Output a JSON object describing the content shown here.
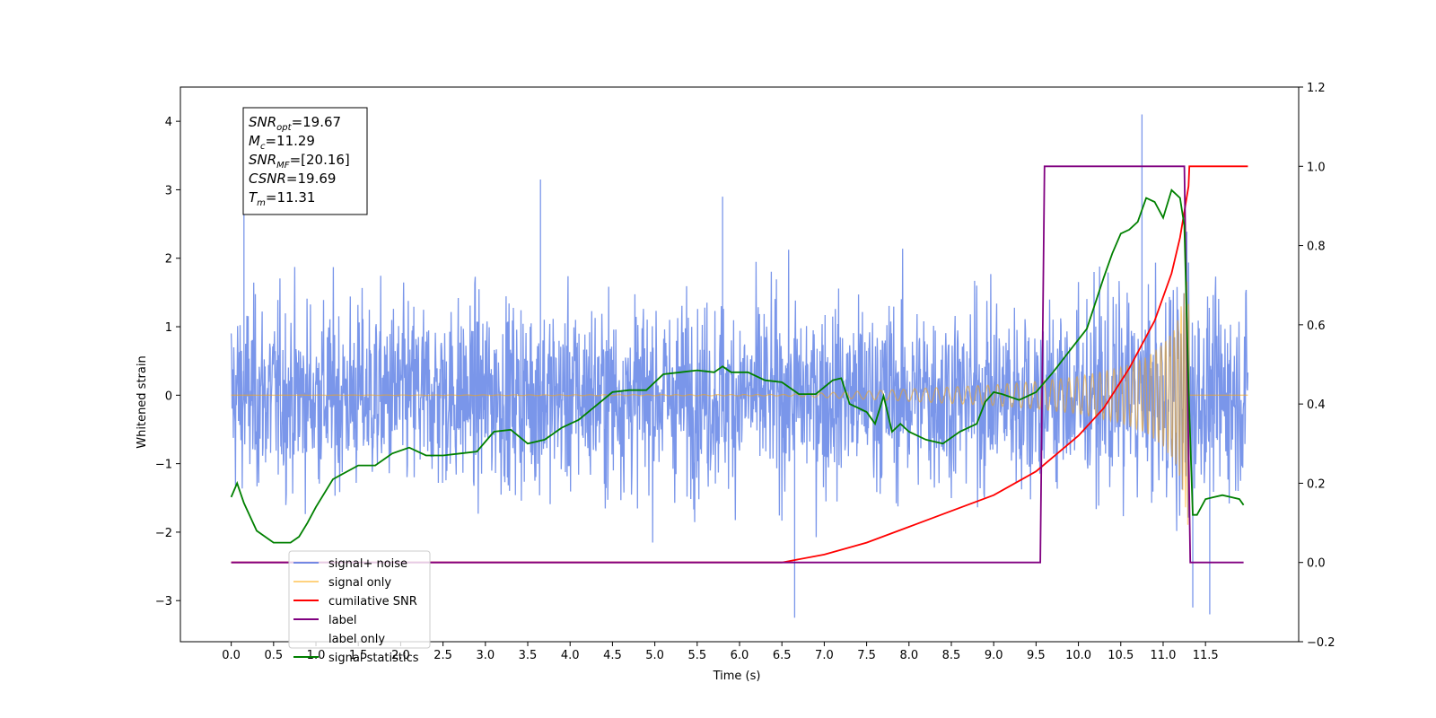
{
  "chart_data": {
    "type": "line",
    "xlabel": "Time (s)",
    "ylabel_left": "Whitened strain",
    "ylabel_right": "",
    "xlim": [
      -0.6,
      12.6
    ],
    "ylim_left": [
      -3.6,
      4.5
    ],
    "ylim_right": [
      -0.2,
      1.2
    ],
    "x_ticks": [
      "0.0",
      "0.5",
      "1.0",
      "1.5",
      "2.0",
      "2.5",
      "3.0",
      "3.5",
      "4.0",
      "4.5",
      "5.0",
      "5.5",
      "6.0",
      "6.5",
      "7.0",
      "7.5",
      "8.0",
      "8.5",
      "9.0",
      "9.5",
      "10.0",
      "10.5",
      "11.0",
      "11.5"
    ],
    "y_ticks_left": [
      "4",
      "3",
      "2",
      "1",
      "0",
      "−1",
      "−2",
      "−3"
    ],
    "y_ticks_right": [
      "1.2",
      "1.0",
      "0.8",
      "0.6",
      "0.4",
      "0.2",
      "0.0",
      "−0.2"
    ],
    "grid": false,
    "legend_position": "lower-left",
    "info_box": [
      {
        "base": "SNR",
        "sub": "opt",
        "value": "=19.67"
      },
      {
        "base": "M",
        "sub": "c",
        "value": "=11.29"
      },
      {
        "base": "SNR",
        "sub": "MF",
        "value": "=[20.16]"
      },
      {
        "base": "CSNR",
        "sub": "",
        "value": "=19.69"
      },
      {
        "base": "T",
        "sub": "m",
        "value": "=11.31"
      }
    ],
    "series": [
      {
        "name": "signal+ noise",
        "axis": "left",
        "color": "#4169e1",
        "description_range": [
          -3.3,
          4.1
        ],
        "x_range": [
          0.0,
          12.0
        ],
        "noise_sigma": 0.85,
        "spikes": [
          {
            "x": 0.15,
            "y": 3.1
          },
          {
            "x": 3.65,
            "y": 3.15
          },
          {
            "x": 6.65,
            "y": -3.25
          },
          {
            "x": 10.75,
            "y": 4.1
          },
          {
            "x": 11.55,
            "y": -3.2
          },
          {
            "x": 11.35,
            "y": -3.1
          },
          {
            "x": 5.8,
            "y": 2.9
          }
        ]
      },
      {
        "name": "signal only",
        "axis": "left",
        "color": "#ffa500",
        "chirp_end": 11.31,
        "envelope": [
          [
            0.0,
            0.0
          ],
          [
            6.5,
            0.01
          ],
          [
            7.5,
            0.06
          ],
          [
            8.5,
            0.12
          ],
          [
            9.0,
            0.15
          ],
          [
            9.5,
            0.2
          ],
          [
            10.0,
            0.27
          ],
          [
            10.5,
            0.4
          ],
          [
            10.8,
            0.55
          ],
          [
            11.0,
            0.75
          ],
          [
            11.15,
            1.0
          ],
          [
            11.25,
            1.5
          ],
          [
            11.3,
            2.0
          ],
          [
            11.31,
            0.0
          ],
          [
            12.0,
            0.0
          ]
        ]
      },
      {
        "name": "cumilative SNR",
        "axis": "right",
        "color": "#ff0000",
        "x": [
          0.0,
          6.5,
          7.0,
          7.5,
          8.0,
          8.5,
          9.0,
          9.5,
          10.0,
          10.3,
          10.6,
          10.9,
          11.1,
          11.2,
          11.3,
          11.31,
          12.0
        ],
        "y": [
          0.0,
          0.0,
          0.02,
          0.05,
          0.09,
          0.13,
          0.17,
          0.23,
          0.32,
          0.39,
          0.49,
          0.61,
          0.73,
          0.82,
          0.95,
          1.0,
          1.0
        ]
      },
      {
        "name": "label",
        "axis": "right",
        "color": "#800080",
        "x": [
          0.0,
          9.55,
          9.6,
          11.25,
          11.32,
          11.95
        ],
        "y": [
          0.0,
          0.0,
          1.0,
          1.0,
          0.0,
          0.0
        ]
      },
      {
        "name": "label only",
        "axis": "right",
        "color": "#ffc0cb",
        "hidden": true,
        "x": [],
        "y": []
      },
      {
        "name": "signal statistics",
        "axis": "right",
        "color": "#008000",
        "x": [
          0.0,
          0.07,
          0.15,
          0.3,
          0.5,
          0.7,
          0.8,
          0.9,
          1.0,
          1.2,
          1.5,
          1.7,
          1.9,
          2.1,
          2.3,
          2.5,
          2.7,
          2.9,
          3.1,
          3.3,
          3.5,
          3.7,
          3.9,
          4.1,
          4.3,
          4.5,
          4.7,
          4.9,
          5.1,
          5.3,
          5.5,
          5.7,
          5.8,
          5.9,
          6.1,
          6.3,
          6.5,
          6.7,
          6.9,
          7.1,
          7.2,
          7.3,
          7.5,
          7.6,
          7.7,
          7.8,
          7.9,
          8.0,
          8.2,
          8.4,
          8.6,
          8.8,
          8.9,
          9.0,
          9.1,
          9.3,
          9.5,
          9.7,
          9.9,
          10.1,
          10.3,
          10.4,
          10.5,
          10.6,
          10.7,
          10.8,
          10.9,
          11.0,
          11.1,
          11.2,
          11.25,
          11.3,
          11.35,
          11.4,
          11.5,
          11.6,
          11.7,
          11.8,
          11.9,
          11.95
        ],
        "y": [
          0.165,
          0.2,
          0.15,
          0.08,
          0.05,
          0.05,
          0.065,
          0.1,
          0.14,
          0.21,
          0.245,
          0.245,
          0.275,
          0.29,
          0.27,
          0.27,
          0.275,
          0.28,
          0.33,
          0.335,
          0.3,
          0.31,
          0.34,
          0.36,
          0.395,
          0.43,
          0.435,
          0.435,
          0.475,
          0.48,
          0.485,
          0.48,
          0.495,
          0.48,
          0.48,
          0.46,
          0.455,
          0.425,
          0.425,
          0.46,
          0.465,
          0.4,
          0.38,
          0.35,
          0.42,
          0.33,
          0.35,
          0.33,
          0.31,
          0.3,
          0.33,
          0.35,
          0.405,
          0.43,
          0.425,
          0.41,
          0.43,
          0.48,
          0.535,
          0.59,
          0.72,
          0.78,
          0.83,
          0.84,
          0.86,
          0.92,
          0.91,
          0.87,
          0.94,
          0.92,
          0.85,
          0.44,
          0.12,
          0.12,
          0.16,
          0.165,
          0.17,
          0.165,
          0.16,
          0.145
        ]
      }
    ]
  }
}
